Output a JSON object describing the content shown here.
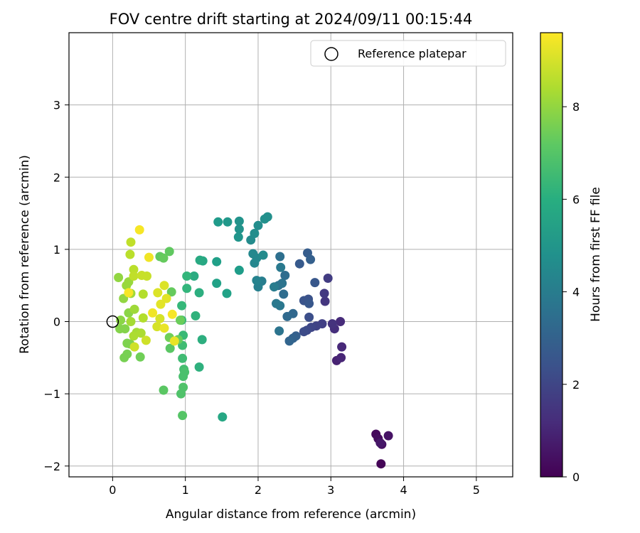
{
  "chart_data": {
    "type": "scatter",
    "title": "FOV centre drift starting at 2024/09/11 00:15:44",
    "xlabel": "Angular distance from reference (arcmin)",
    "ylabel": "Rotation from reference (arcmin)",
    "xlim": [
      -0.6,
      5.5
    ],
    "ylim": [
      -2.15,
      4.0
    ],
    "x_ticks": [
      0,
      1,
      2,
      3,
      4,
      5
    ],
    "y_ticks": [
      -2,
      -1,
      0,
      1,
      2,
      3
    ],
    "grid": true,
    "legend": {
      "placement": "top-right",
      "entries": [
        "Reference platepar"
      ]
    },
    "reference_point": {
      "x": 0,
      "y": 0
    },
    "colorbar": {
      "label": "Hours from first FF file",
      "colormap": "viridis",
      "range": [
        0,
        9.6
      ],
      "ticks": [
        0,
        2,
        4,
        6,
        8
      ]
    },
    "series": [
      {
        "points": [
          {
            "x": 3.69,
            "y": -1.97,
            "h": 0.1
          },
          {
            "x": 3.62,
            "y": -1.56,
            "h": 0.2
          },
          {
            "x": 3.65,
            "y": -1.62,
            "h": 0.3
          },
          {
            "x": 3.7,
            "y": -1.7,
            "h": 0.4
          },
          {
            "x": 3.79,
            "y": -1.58,
            "h": 0.5
          },
          {
            "x": 3.68,
            "y": -1.68,
            "h": 0.6
          },
          {
            "x": 3.08,
            "y": -0.54,
            "h": 0.9
          },
          {
            "x": 3.14,
            "y": -0.5,
            "h": 1.0
          },
          {
            "x": 3.15,
            "y": -0.35,
            "h": 1.1
          },
          {
            "x": 3.13,
            "y": 0.0,
            "h": 1.2
          },
          {
            "x": 3.05,
            "y": -0.1,
            "h": 1.3
          },
          {
            "x": 3.02,
            "y": -0.03,
            "h": 1.4
          },
          {
            "x": 2.92,
            "y": 0.28,
            "h": 1.5
          },
          {
            "x": 2.91,
            "y": 0.39,
            "h": 1.6
          },
          {
            "x": 2.96,
            "y": 0.6,
            "h": 1.7
          },
          {
            "x": 2.88,
            "y": -0.03,
            "h": 1.8
          },
          {
            "x": 2.8,
            "y": -0.06,
            "h": 1.9
          },
          {
            "x": 2.73,
            "y": -0.08,
            "h": 2.0
          },
          {
            "x": 2.67,
            "y": -0.12,
            "h": 2.1
          },
          {
            "x": 2.63,
            "y": -0.14,
            "h": 2.2
          },
          {
            "x": 2.7,
            "y": 0.06,
            "h": 2.3
          },
          {
            "x": 2.69,
            "y": 0.31,
            "h": 2.4
          },
          {
            "x": 2.63,
            "y": 0.29,
            "h": 2.5
          },
          {
            "x": 2.7,
            "y": 0.25,
            "h": 2.6
          },
          {
            "x": 2.78,
            "y": 0.54,
            "h": 2.6
          },
          {
            "x": 2.57,
            "y": 0.8,
            "h": 2.7
          },
          {
            "x": 2.68,
            "y": 0.95,
            "h": 2.8
          },
          {
            "x": 2.72,
            "y": 0.86,
            "h": 2.9
          },
          {
            "x": 2.52,
            "y": -0.2,
            "h": 2.9
          },
          {
            "x": 2.48,
            "y": -0.23,
            "h": 3.0
          },
          {
            "x": 2.43,
            "y": -0.27,
            "h": 3.1
          },
          {
            "x": 2.48,
            "y": 0.11,
            "h": 3.2
          },
          {
            "x": 2.4,
            "y": 0.07,
            "h": 3.3
          },
          {
            "x": 2.35,
            "y": 0.38,
            "h": 3.4
          },
          {
            "x": 2.37,
            "y": 0.64,
            "h": 3.4
          },
          {
            "x": 2.3,
            "y": 0.9,
            "h": 3.5
          },
          {
            "x": 2.28,
            "y": 0.5,
            "h": 3.6
          },
          {
            "x": 2.33,
            "y": 0.53,
            "h": 3.7
          },
          {
            "x": 2.29,
            "y": -0.13,
            "h": 3.7
          },
          {
            "x": 2.3,
            "y": 0.22,
            "h": 3.8
          },
          {
            "x": 2.25,
            "y": 0.25,
            "h": 3.9
          },
          {
            "x": 2.31,
            "y": 0.75,
            "h": 3.9
          },
          {
            "x": 2.22,
            "y": 0.48,
            "h": 4.0
          },
          {
            "x": 2.05,
            "y": 0.56,
            "h": 4.1
          },
          {
            "x": 2.0,
            "y": 0.48,
            "h": 4.2
          },
          {
            "x": 1.98,
            "y": 0.57,
            "h": 4.3
          },
          {
            "x": 1.95,
            "y": 0.81,
            "h": 4.4
          },
          {
            "x": 1.93,
            "y": 0.94,
            "h": 4.5
          },
          {
            "x": 1.98,
            "y": 0.88,
            "h": 4.5
          },
          {
            "x": 2.07,
            "y": 0.92,
            "h": 4.6
          },
          {
            "x": 1.9,
            "y": 1.13,
            "h": 4.6
          },
          {
            "x": 1.95,
            "y": 1.22,
            "h": 4.7
          },
          {
            "x": 2.0,
            "y": 1.33,
            "h": 4.7
          },
          {
            "x": 2.09,
            "y": 1.42,
            "h": 4.8
          },
          {
            "x": 2.13,
            "y": 1.45,
            "h": 4.8
          },
          {
            "x": 1.74,
            "y": 1.39,
            "h": 4.9
          },
          {
            "x": 1.74,
            "y": 1.28,
            "h": 4.9
          },
          {
            "x": 1.73,
            "y": 1.17,
            "h": 5.0
          },
          {
            "x": 1.58,
            "y": 1.38,
            "h": 5.1
          },
          {
            "x": 1.45,
            "y": 1.38,
            "h": 5.2
          },
          {
            "x": 1.74,
            "y": 0.71,
            "h": 5.3
          },
          {
            "x": 1.43,
            "y": 0.83,
            "h": 5.4
          },
          {
            "x": 1.57,
            "y": 0.39,
            "h": 5.5
          },
          {
            "x": 1.43,
            "y": 0.53,
            "h": 5.5
          },
          {
            "x": 1.51,
            "y": -1.32,
            "h": 5.7
          },
          {
            "x": 1.24,
            "y": 0.84,
            "h": 5.7
          },
          {
            "x": 1.2,
            "y": 0.85,
            "h": 5.8
          },
          {
            "x": 1.12,
            "y": 0.63,
            "h": 5.9
          },
          {
            "x": 1.19,
            "y": 0.4,
            "h": 6.0
          },
          {
            "x": 1.23,
            "y": -0.25,
            "h": 6.0
          },
          {
            "x": 1.19,
            "y": -0.63,
            "h": 6.1
          },
          {
            "x": 1.14,
            "y": 0.08,
            "h": 6.2
          },
          {
            "x": 1.02,
            "y": 0.63,
            "h": 6.3
          },
          {
            "x": 1.02,
            "y": 0.46,
            "h": 6.3
          },
          {
            "x": 0.95,
            "y": 0.22,
            "h": 6.4
          },
          {
            "x": 0.95,
            "y": 0.02,
            "h": 6.5
          },
          {
            "x": 0.97,
            "y": -0.19,
            "h": 6.5
          },
          {
            "x": 0.96,
            "y": -0.33,
            "h": 6.6
          },
          {
            "x": 0.96,
            "y": -0.51,
            "h": 6.6
          },
          {
            "x": 0.98,
            "y": -0.66,
            "h": 6.7
          },
          {
            "x": 0.99,
            "y": -0.7,
            "h": 6.8
          },
          {
            "x": 0.97,
            "y": -0.76,
            "h": 6.8
          },
          {
            "x": 0.97,
            "y": -0.91,
            "h": 6.9
          },
          {
            "x": 0.94,
            "y": -1.0,
            "h": 6.9
          },
          {
            "x": 0.96,
            "y": -1.3,
            "h": 7.0
          },
          {
            "x": 0.7,
            "y": -0.95,
            "h": 7.1
          },
          {
            "x": 0.79,
            "y": -0.37,
            "h": 7.1
          },
          {
            "x": 0.78,
            "y": 0.97,
            "h": 7.2
          },
          {
            "x": 0.65,
            "y": 0.9,
            "h": 7.2
          },
          {
            "x": 0.7,
            "y": 0.88,
            "h": 7.3
          },
          {
            "x": 0.81,
            "y": 0.41,
            "h": 7.3
          },
          {
            "x": 0.93,
            "y": 0.02,
            "h": 7.4
          },
          {
            "x": 0.9,
            "y": -0.25,
            "h": 7.4
          },
          {
            "x": 0.78,
            "y": -0.22,
            "h": 7.5
          },
          {
            "x": 0.38,
            "y": -0.49,
            "h": 7.5
          },
          {
            "x": 0.16,
            "y": -0.5,
            "h": 7.6
          },
          {
            "x": 0.2,
            "y": -0.45,
            "h": 7.6
          },
          {
            "x": 0.24,
            "y": -0.31,
            "h": 7.7
          },
          {
            "x": 0.2,
            "y": -0.3,
            "h": 7.7
          },
          {
            "x": 0.17,
            "y": -0.1,
            "h": 7.8
          },
          {
            "x": 0.1,
            "y": -0.1,
            "h": 7.8
          },
          {
            "x": 0.11,
            "y": 0.02,
            "h": 7.9
          },
          {
            "x": 0.22,
            "y": 0.12,
            "h": 7.9
          },
          {
            "x": 0.15,
            "y": 0.32,
            "h": 8.0
          },
          {
            "x": 0.08,
            "y": 0.61,
            "h": 8.0
          },
          {
            "x": 0.19,
            "y": 0.5,
            "h": 8.1
          },
          {
            "x": 0.22,
            "y": 0.55,
            "h": 8.1
          },
          {
            "x": 0.25,
            "y": 0.39,
            "h": 8.2
          },
          {
            "x": 0.3,
            "y": 0.17,
            "h": 8.2
          },
          {
            "x": 0.25,
            "y": 0.0,
            "h": 8.3
          },
          {
            "x": 0.33,
            "y": -0.15,
            "h": 8.3
          },
          {
            "x": 0.29,
            "y": -0.2,
            "h": 8.4
          },
          {
            "x": 0.39,
            "y": -0.16,
            "h": 8.4
          },
          {
            "x": 0.42,
            "y": 0.05,
            "h": 8.5
          },
          {
            "x": 0.42,
            "y": 0.38,
            "h": 8.5
          },
          {
            "x": 0.29,
            "y": 0.72,
            "h": 8.6
          },
          {
            "x": 0.24,
            "y": 0.93,
            "h": 8.6
          },
          {
            "x": 0.25,
            "y": 1.1,
            "h": 8.7
          },
          {
            "x": 0.29,
            "y": 0.63,
            "h": 8.7
          },
          {
            "x": 0.4,
            "y": 0.64,
            "h": 8.8
          },
          {
            "x": 0.47,
            "y": 0.63,
            "h": 8.8
          },
          {
            "x": 0.46,
            "y": -0.26,
            "h": 8.9
          },
          {
            "x": 0.3,
            "y": -0.35,
            "h": 8.9
          },
          {
            "x": 0.61,
            "y": -0.07,
            "h": 9.0
          },
          {
            "x": 0.65,
            "y": 0.04,
            "h": 9.0
          },
          {
            "x": 0.62,
            "y": 0.4,
            "h": 9.1
          },
          {
            "x": 0.71,
            "y": 0.5,
            "h": 9.1
          },
          {
            "x": 0.66,
            "y": 0.24,
            "h": 9.2
          },
          {
            "x": 0.74,
            "y": 0.32,
            "h": 9.2
          },
          {
            "x": 0.71,
            "y": -0.09,
            "h": 9.3
          },
          {
            "x": 0.85,
            "y": -0.27,
            "h": 9.3
          },
          {
            "x": 0.55,
            "y": 0.12,
            "h": 9.4
          },
          {
            "x": 0.5,
            "y": 0.89,
            "h": 9.4
          },
          {
            "x": 0.37,
            "y": 1.27,
            "h": 9.5
          },
          {
            "x": 0.22,
            "y": 0.4,
            "h": 9.5
          },
          {
            "x": 0.82,
            "y": 0.1,
            "h": 9.5
          }
        ]
      }
    ]
  }
}
